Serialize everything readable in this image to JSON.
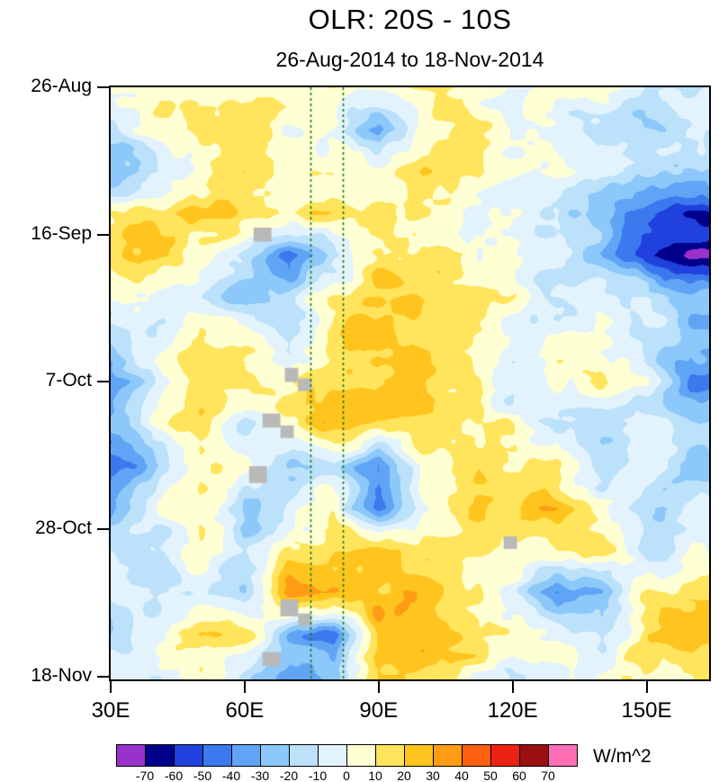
{
  "page": {
    "background": "#ffffff"
  },
  "chart_data": {
    "type": "heatmap",
    "title": "OLR: 20S - 10S",
    "subtitle": "26-Aug-2014 to 18-Nov-2014",
    "xtick_labels": [
      "30E",
      "60E",
      "90E",
      "120E",
      "150E"
    ],
    "xtick_lons": [
      30,
      60,
      90,
      120,
      150
    ],
    "xlim": [
      30,
      164
    ],
    "ytick_labels": [
      "26-Aug",
      "16-Sep",
      "7-Oct",
      "28-Oct",
      "18-Nov"
    ],
    "ytick_days": [
      0,
      21,
      42,
      63,
      84
    ],
    "ylim": [
      0,
      84.4
    ],
    "colorbar": {
      "levels": [
        -70,
        -60,
        -50,
        -40,
        -30,
        -20,
        -10,
        0,
        10,
        20,
        30,
        40,
        50,
        60,
        70
      ],
      "colors": [
        "#9932cc",
        "#00008b",
        "#2041dd",
        "#3c78ee",
        "#60a5f5",
        "#8dc8fa",
        "#bce1fb",
        "#e3f3fd",
        "#ffffd4",
        "#ffe45c",
        "#ffc41e",
        "#ff9c14",
        "#ff5f0f",
        "#ee2212",
        "#9a1010",
        "#ff6eb4"
      ],
      "units": "W/m^2"
    },
    "reference_lines": {
      "color": "#177d17",
      "style": "dashed",
      "lons": [
        74.7,
        82.0
      ]
    },
    "missing_color": "#b9b9b9",
    "missing_patches": [
      {
        "lon": 62,
        "day": 20,
        "dlon": 4,
        "dday": 2
      },
      {
        "lon": 69,
        "day": 40,
        "dlon": 3,
        "dday": 2
      },
      {
        "lon": 72,
        "day": 41.5,
        "dlon": 3,
        "dday": 1.8
      },
      {
        "lon": 64,
        "day": 46.5,
        "dlon": 4,
        "dday": 2
      },
      {
        "lon": 68,
        "day": 48.2,
        "dlon": 3,
        "dday": 1.8
      },
      {
        "lon": 61,
        "day": 54,
        "dlon": 4,
        "dday": 2.4
      },
      {
        "lon": 118,
        "day": 64,
        "dlon": 3,
        "dday": 1.8
      },
      {
        "lon": 68,
        "day": 73,
        "dlon": 4,
        "dday": 2.4
      },
      {
        "lon": 72,
        "day": 75,
        "dlon": 3,
        "dday": 1.8
      },
      {
        "lon": 64,
        "day": 80.5,
        "dlon": 4,
        "dday": 2
      }
    ],
    "grid": {
      "lons": [
        30,
        40,
        50,
        60,
        70,
        80,
        90,
        100,
        110,
        120,
        130,
        140,
        150,
        160
      ],
      "days": [
        0,
        6,
        12,
        18,
        24,
        30,
        36,
        42,
        48,
        54,
        60,
        66,
        72,
        78,
        84
      ],
      "values": [
        [
          2,
          6,
          4,
          6,
          10,
          8,
          4,
          6,
          4,
          -4,
          2,
          6,
          -8,
          -6
        ],
        [
          -14,
          2,
          10,
          14,
          6,
          -2,
          -42,
          14,
          18,
          4,
          -6,
          -18,
          -22,
          -12
        ],
        [
          -28,
          -18,
          6,
          14,
          4,
          2,
          6,
          14,
          8,
          0,
          4,
          -6,
          -12,
          -18
        ],
        [
          6,
          18,
          20,
          14,
          12,
          18,
          8,
          4,
          0,
          -6,
          -12,
          -28,
          -45,
          -55
        ],
        [
          12,
          20,
          8,
          -12,
          -42,
          -18,
          14,
          18,
          8,
          0,
          -10,
          -24,
          -55,
          -68
        ],
        [
          0,
          4,
          -6,
          -24,
          -14,
          10,
          24,
          20,
          14,
          4,
          -14,
          -10,
          -2,
          -22
        ],
        [
          -18,
          -8,
          14,
          10,
          -12,
          18,
          24,
          18,
          10,
          -6,
          4,
          0,
          -14,
          -28
        ],
        [
          -38,
          -10,
          14,
          18,
          8,
          20,
          26,
          24,
          14,
          -14,
          4,
          10,
          -6,
          -42
        ],
        [
          -24,
          0,
          18,
          -12,
          14,
          24,
          20,
          18,
          10,
          4,
          -10,
          -18,
          -10,
          -14
        ],
        [
          -48,
          -24,
          14,
          4,
          -18,
          -10,
          -42,
          6,
          18,
          14,
          10,
          -18,
          -6,
          -24
        ],
        [
          -28,
          -6,
          10,
          -24,
          -4,
          6,
          -48,
          0,
          14,
          18,
          24,
          0,
          -18,
          -10
        ],
        [
          -10,
          -14,
          10,
          -18,
          6,
          22,
          24,
          14,
          10,
          6,
          14,
          18,
          -14,
          -4
        ],
        [
          -6,
          -18,
          -10,
          -18,
          36,
          30,
          28,
          24,
          14,
          0,
          -38,
          -28,
          6,
          10
        ],
        [
          -22,
          6,
          18,
          14,
          -28,
          -42,
          24,
          28,
          18,
          10,
          4,
          -14,
          18,
          24
        ],
        [
          0,
          -8,
          4,
          -12,
          -38,
          -28,
          24,
          18,
          8,
          -8,
          0,
          6,
          14,
          8
        ]
      ]
    },
    "noise": {
      "amplitude": 11,
      "scale_lon": 7,
      "scale_day": 3
    }
  }
}
